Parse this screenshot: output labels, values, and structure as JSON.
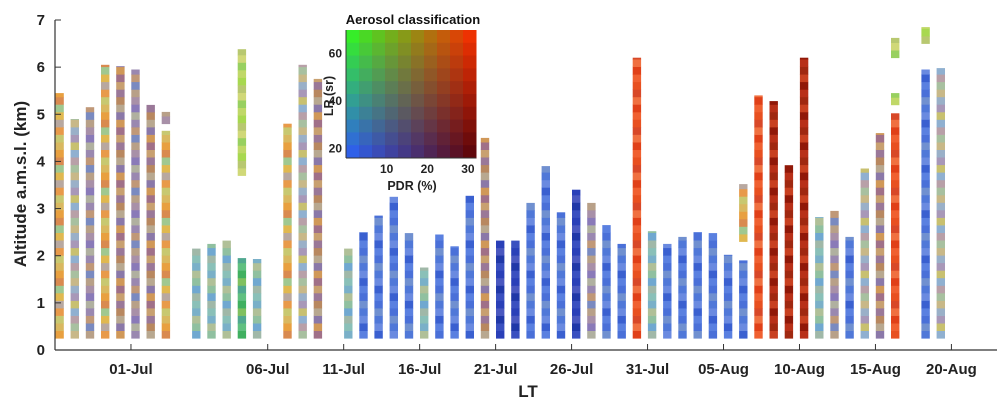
{
  "chart_data": {
    "type": "bar",
    "title": "",
    "xlabel": "LT",
    "ylabel": "Altitude a.m.s.l. (km)",
    "ylim": [
      0,
      7
    ],
    "yticks": [
      "0",
      "1",
      "2",
      "3",
      "4",
      "5",
      "6",
      "7"
    ],
    "xlim": [
      0,
      62
    ],
    "xticks": [
      {
        "label": "01-Jul",
        "x": 5
      },
      {
        "label": "06-Jul",
        "x": 14
      },
      {
        "label": "11-Jul",
        "x": 19
      },
      {
        "label": "16-Jul",
        "x": 24
      },
      {
        "label": "21-Jul",
        "x": 29
      },
      {
        "label": "26-Jul",
        "x": 34
      },
      {
        "label": "31-Jul",
        "x": 39
      },
      {
        "label": "05-Aug",
        "x": 44
      },
      {
        "label": "10-Aug",
        "x": 49
      },
      {
        "label": "15-Aug",
        "x": 54
      },
      {
        "label": "20-Aug",
        "x": 59
      }
    ],
    "bars": [
      {
        "x": 0.3,
        "bottom": 0.25,
        "top": 5.45,
        "profile": "orange-mix"
      },
      {
        "x": 1.3,
        "bottom": 0.25,
        "top": 4.9,
        "profile": "mixed"
      },
      {
        "x": 2.3,
        "bottom": 0.25,
        "top": 5.15,
        "profile": "purple-mix"
      },
      {
        "x": 3.3,
        "bottom": 0.25,
        "top": 6.05,
        "profile": "orange-mix"
      },
      {
        "x": 4.3,
        "bottom": 0.25,
        "top": 6.02,
        "profile": "brown-mix"
      },
      {
        "x": 5.3,
        "bottom": 0.25,
        "top": 5.95,
        "profile": "purple-mix"
      },
      {
        "x": 6.3,
        "bottom": 0.25,
        "top": 5.2,
        "profile": "brown-mix"
      },
      {
        "x": 7.3,
        "bottom": 0.25,
        "top": 4.65,
        "profile": "orange-mix"
      },
      {
        "x": 7.3,
        "bottom": 4.8,
        "top": 5.05,
        "profile": "purple-mix"
      },
      {
        "x": 9.3,
        "bottom": 0.25,
        "top": 2.15,
        "profile": "teal"
      },
      {
        "x": 10.3,
        "bottom": 0.25,
        "top": 2.25,
        "profile": "teal"
      },
      {
        "x": 11.3,
        "bottom": 0.25,
        "top": 2.32,
        "profile": "teal"
      },
      {
        "x": 12.3,
        "bottom": 0.25,
        "top": 1.95,
        "profile": "green"
      },
      {
        "x": 12.3,
        "bottom": 3.7,
        "top": 6.38,
        "profile": "lime"
      },
      {
        "x": 13.3,
        "bottom": 0.25,
        "top": 1.93,
        "profile": "teal"
      },
      {
        "x": 15.3,
        "bottom": 0.25,
        "top": 4.8,
        "profile": "orange-mix"
      },
      {
        "x": 16.3,
        "bottom": 0.25,
        "top": 6.05,
        "profile": "mixed"
      },
      {
        "x": 17.3,
        "bottom": 0.25,
        "top": 5.75,
        "profile": "brown-mix"
      },
      {
        "x": 19.3,
        "bottom": 0.25,
        "top": 2.15,
        "profile": "teal"
      },
      {
        "x": 20.3,
        "bottom": 0.25,
        "top": 2.5,
        "profile": "blue"
      },
      {
        "x": 21.3,
        "bottom": 0.25,
        "top": 2.85,
        "profile": "blue"
      },
      {
        "x": 22.3,
        "bottom": 0.25,
        "top": 3.25,
        "profile": "blue"
      },
      {
        "x": 23.3,
        "bottom": 0.25,
        "top": 2.48,
        "profile": "blue"
      },
      {
        "x": 24.3,
        "bottom": 0.25,
        "top": 1.75,
        "profile": "teal"
      },
      {
        "x": 25.3,
        "bottom": 0.25,
        "top": 2.45,
        "profile": "blue"
      },
      {
        "x": 26.3,
        "bottom": 0.25,
        "top": 2.2,
        "profile": "blue"
      },
      {
        "x": 27.3,
        "bottom": 0.25,
        "top": 3.27,
        "profile": "blue"
      },
      {
        "x": 28.3,
        "bottom": 0.25,
        "top": 4.5,
        "profile": "brown-mix"
      },
      {
        "x": 29.3,
        "bottom": 0.25,
        "top": 2.32,
        "profile": "darkblue"
      },
      {
        "x": 30.3,
        "bottom": 0.25,
        "top": 2.32,
        "profile": "darkblue"
      },
      {
        "x": 31.3,
        "bottom": 0.25,
        "top": 3.12,
        "profile": "blue"
      },
      {
        "x": 32.3,
        "bottom": 0.25,
        "top": 3.9,
        "profile": "blue"
      },
      {
        "x": 33.3,
        "bottom": 0.25,
        "top": 2.92,
        "profile": "blue"
      },
      {
        "x": 34.3,
        "bottom": 0.25,
        "top": 3.4,
        "profile": "darkblue"
      },
      {
        "x": 35.3,
        "bottom": 0.25,
        "top": 3.12,
        "profile": "purple-mix"
      },
      {
        "x": 36.3,
        "bottom": 0.25,
        "top": 2.65,
        "profile": "blue"
      },
      {
        "x": 37.3,
        "bottom": 0.25,
        "top": 2.25,
        "profile": "blue"
      },
      {
        "x": 38.3,
        "bottom": 0.25,
        "top": 6.2,
        "profile": "red"
      },
      {
        "x": 39.3,
        "bottom": 0.25,
        "top": 2.52,
        "profile": "teal"
      },
      {
        "x": 40.3,
        "bottom": 0.25,
        "top": 2.25,
        "profile": "blue"
      },
      {
        "x": 41.3,
        "bottom": 0.25,
        "top": 2.4,
        "profile": "blue"
      },
      {
        "x": 42.3,
        "bottom": 0.25,
        "top": 2.5,
        "profile": "blue"
      },
      {
        "x": 43.3,
        "bottom": 0.25,
        "top": 2.48,
        "profile": "blue"
      },
      {
        "x": 44.3,
        "bottom": 0.25,
        "top": 2.02,
        "profile": "blue"
      },
      {
        "x": 45.3,
        "bottom": 0.25,
        "top": 1.9,
        "profile": "blue"
      },
      {
        "x": 45.3,
        "bottom": 2.3,
        "top": 3.52,
        "profile": "orange-mix"
      },
      {
        "x": 46.3,
        "bottom": 0.25,
        "top": 5.4,
        "profile": "red"
      },
      {
        "x": 47.3,
        "bottom": 0.25,
        "top": 5.28,
        "profile": "darkred"
      },
      {
        "x": 48.3,
        "bottom": 0.25,
        "top": 3.92,
        "profile": "darkred"
      },
      {
        "x": 49.3,
        "bottom": 0.25,
        "top": 6.2,
        "profile": "darkred"
      },
      {
        "x": 50.3,
        "bottom": 0.25,
        "top": 2.82,
        "profile": "teal"
      },
      {
        "x": 51.3,
        "bottom": 0.25,
        "top": 2.95,
        "profile": "purple-mix"
      },
      {
        "x": 52.3,
        "bottom": 0.25,
        "top": 2.4,
        "profile": "blue"
      },
      {
        "x": 53.3,
        "bottom": 0.25,
        "top": 3.85,
        "profile": "mixed"
      },
      {
        "x": 54.3,
        "bottom": 0.25,
        "top": 4.6,
        "profile": "brown-mix"
      },
      {
        "x": 55.3,
        "bottom": 0.25,
        "top": 5.02,
        "profile": "red"
      },
      {
        "x": 55.3,
        "bottom": 5.2,
        "top": 5.45,
        "profile": "lime"
      },
      {
        "x": 55.3,
        "bottom": 6.2,
        "top": 6.62,
        "profile": "lime"
      },
      {
        "x": 57.3,
        "bottom": 0.25,
        "top": 5.95,
        "profile": "blue"
      },
      {
        "x": 57.3,
        "bottom": 6.5,
        "top": 6.85,
        "profile": "lime"
      },
      {
        "x": 58.3,
        "bottom": 0.25,
        "top": 5.98,
        "profile": "mixed"
      }
    ],
    "inset": {
      "title": "Aerosol classification",
      "xlabel": "PDR (%)",
      "ylabel": "LR (sr)",
      "xticks": [
        "10",
        "20",
        "30"
      ],
      "yticks": [
        "20",
        "40",
        "60"
      ],
      "corner_colors": {
        "bottom_left": "#2c5dff",
        "top_left": "#2cff20",
        "top_right": "#ff2a00",
        "bottom_right": "#5a0000"
      }
    }
  }
}
